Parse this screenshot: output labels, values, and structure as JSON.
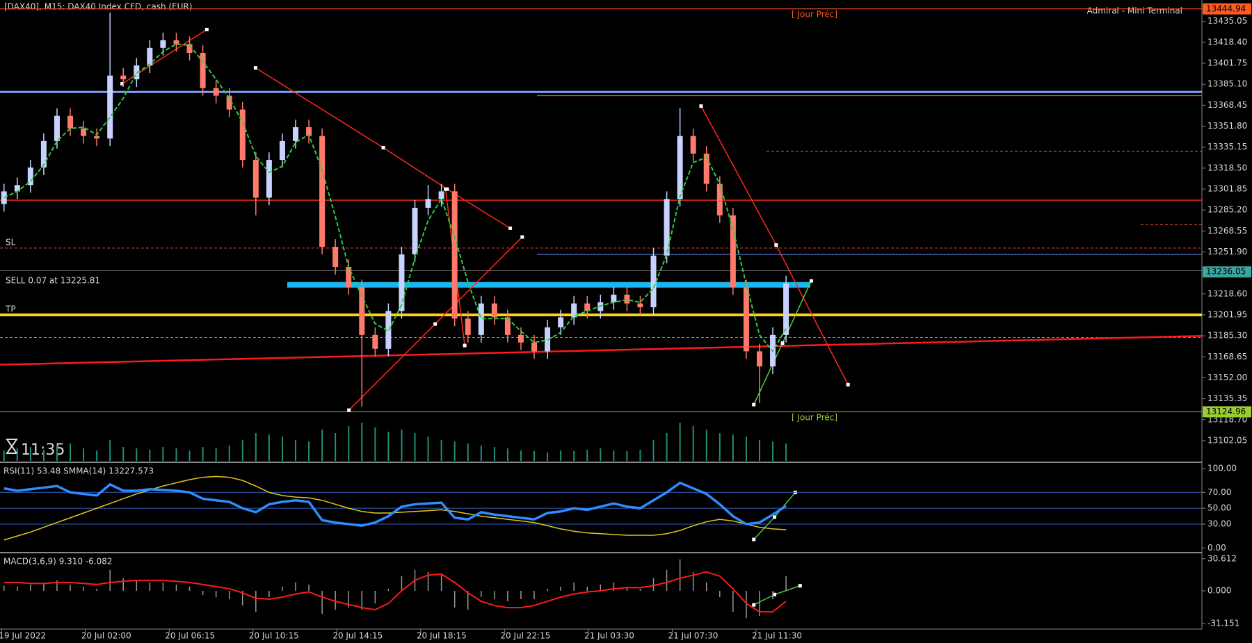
{
  "header": {
    "symbol": "[DAX40], M15:  DAX40 Index CFD, cash (EUR)",
    "terminal": "Admiral - Mini Terminal"
  },
  "main": {
    "ylim": [
      13086,
      13452
    ],
    "yticks": [
      13435.05,
      {
        "value": 13418.4,
        "label": "13418.40"
      },
      13401.75,
      {
        "value": 13385.1,
        "label": "13385.10"
      },
      13368.45,
      {
        "value": 13351.8,
        "label": "13351.80"
      },
      13335.15,
      {
        "value": 13318.5,
        "label": "13318.50"
      },
      13301.85,
      {
        "value": 13285.2,
        "label": "13285.20"
      },
      13268.55,
      {
        "value": 13251.9,
        "label": "13251.90"
      },
      {
        "value": 13218.6,
        "label": "13218.60"
      },
      13201.95,
      {
        "value": 13185.3,
        "label": "13185.30"
      },
      13168.65,
      {
        "value": 13152,
        "label": "13152.00"
      },
      13135.35,
      {
        "value": 13118.7,
        "label": "13118.70"
      },
      13102.05
    ],
    "price_boxes": [
      {
        "value": 13444.94,
        "color": "#ff5a1f"
      },
      {
        "value": 13236.05,
        "color": "#3aa6a0"
      },
      {
        "value": 13124.96,
        "color": "#9acd32"
      }
    ],
    "jour_prec": [
      "[ Jour Préc]",
      "[ Jour Préc]"
    ],
    "levels": [
      {
        "value": 13379,
        "color": "#7aa2ff",
        "width": 3,
        "dash": false
      },
      {
        "value": 13376,
        "color": "#ff5a1f",
        "width": 1,
        "dash": false
      },
      {
        "value": 13332,
        "color": "#ff5a1f",
        "width": 1,
        "dash": true
      },
      {
        "value": 13293,
        "color": "#ff2a1a",
        "width": 1.5,
        "dash": false
      },
      {
        "value": 13274,
        "color": "#ff5a1f",
        "width": 1,
        "dash": true
      },
      {
        "value": 13255,
        "color": "#ff3b30",
        "width": 1,
        "dash": true
      },
      {
        "value": 13250,
        "color": "#6f9cff",
        "width": 1,
        "dash": false
      },
      {
        "value": 13237,
        "color": "#777777",
        "width": 1,
        "dash": false
      },
      {
        "value": 13225.81,
        "color": "#19b6f0",
        "width": 8,
        "dash": false
      },
      {
        "value": 13201.95,
        "color": "#ffd21a",
        "width": 4,
        "dash": false
      },
      {
        "value": 13184,
        "color": "#a070c0",
        "width": 1,
        "dash": true
      },
      {
        "value": 13444.94,
        "color": "#ff5a1f",
        "width": 1,
        "dash": false
      },
      {
        "value": 13124.96,
        "color": "#9acd32",
        "width": 1,
        "dash": false
      }
    ],
    "labels": {
      "sl": "SL",
      "sell": "SELL 0.07 at 13225.81",
      "tp": "TP"
    },
    "timer": "11:35",
    "bull_color": "#c8d2ff",
    "bear_color": "#ff7a6a",
    "candles": {
      "open": [
        13290,
        13300,
        13305,
        13319,
        13340,
        13360,
        13350,
        13344,
        13342,
        13392,
        13389,
        13400,
        13414,
        13420,
        13417,
        13410,
        13382,
        13376,
        13365,
        13325,
        13295,
        13325,
        13340,
        13351,
        13344,
        13256,
        13240,
        13224,
        13186,
        13175,
        13205,
        13250,
        13287,
        13294,
        13300,
        13199,
        13186,
        13211,
        13200,
        13186,
        13180,
        13173,
        13192,
        13200,
        13211,
        13205,
        13212,
        13218,
        13211,
        13208,
        13249,
        13294,
        13344,
        13330,
        13306,
        13281,
        13224,
        13173,
        13161,
        13186
      ],
      "high": [
        13306,
        13311,
        13325,
        13346,
        13366,
        13366,
        13356,
        13350,
        13442,
        13398,
        13406,
        13420,
        13426,
        13426,
        13423,
        13416,
        13388,
        13382,
        13371,
        13331,
        13331,
        13346,
        13357,
        13357,
        13350,
        13262,
        13246,
        13230,
        13192,
        13211,
        13256,
        13293,
        13305,
        13306,
        13306,
        13205,
        13217,
        13217,
        13206,
        13192,
        13186,
        13198,
        13206,
        13217,
        13217,
        13218,
        13224,
        13224,
        13217,
        13255,
        13300,
        13366,
        13350,
        13336,
        13312,
        13287,
        13230,
        13179,
        13192,
        13233
      ],
      "low": [
        13284,
        13294,
        13299,
        13313,
        13334,
        13344,
        13338,
        13336,
        13336,
        13383,
        13383,
        13394,
        13408,
        13411,
        13404,
        13376,
        13370,
        13359,
        13319,
        13281,
        13289,
        13319,
        13334,
        13338,
        13250,
        13234,
        13218,
        13129,
        13169,
        13169,
        13199,
        13244,
        13281,
        13288,
        13193,
        13180,
        13180,
        13194,
        13180,
        13174,
        13167,
        13167,
        13186,
        13194,
        13199,
        13199,
        13206,
        13205,
        13202,
        13202,
        13243,
        13288,
        13324,
        13300,
        13275,
        13218,
        13167,
        13132,
        13155,
        13180
      ],
      "close": [
        13300,
        13305,
        13319,
        13340,
        13360,
        13350,
        13344,
        13342,
        13392,
        13389,
        13400,
        13414,
        13420,
        13417,
        13410,
        13382,
        13376,
        13365,
        13325,
        13295,
        13325,
        13340,
        13351,
        13344,
        13256,
        13240,
        13224,
        13186,
        13175,
        13205,
        13250,
        13287,
        13294,
        13300,
        13199,
        13186,
        13211,
        13200,
        13186,
        13180,
        13173,
        13192,
        13200,
        13211,
        13205,
        13212,
        13218,
        13211,
        13208,
        13249,
        13294,
        13344,
        13330,
        13306,
        13281,
        13224,
        13173,
        13161,
        13186,
        13227
      ]
    },
    "ma": {
      "color": "#2ecc40",
      "values": [
        13295,
        13300,
        13308,
        13321,
        13340,
        13350,
        13351,
        13345,
        13359,
        13374,
        13394,
        13401,
        13411,
        13417,
        13416,
        13403,
        13389,
        13374,
        13355,
        13328,
        13315,
        13320,
        13339,
        13345,
        13317,
        13280,
        13240,
        13217,
        13195,
        13189,
        13210,
        13247,
        13277,
        13294,
        13264,
        13228,
        13199,
        13199,
        13199,
        13189,
        13180,
        13182,
        13188,
        13201,
        13205,
        13209,
        13212,
        13214,
        13212,
        13223,
        13250,
        13296,
        13323,
        13327,
        13306,
        13270,
        13226,
        13186,
        13173,
        13191
      ]
    },
    "volume": {
      "color": "#1f8f7a",
      "vlim": [
        0,
        60
      ],
      "values": [
        15,
        18,
        20,
        16,
        22,
        25,
        18,
        15,
        30,
        20,
        18,
        16,
        20,
        18,
        15,
        20,
        18,
        22,
        30,
        40,
        38,
        35,
        30,
        28,
        45,
        40,
        50,
        55,
        48,
        42,
        45,
        40,
        35,
        30,
        28,
        25,
        22,
        20,
        18,
        15,
        14,
        12,
        15,
        14,
        16,
        18,
        15,
        14,
        16,
        30,
        40,
        55,
        50,
        45,
        40,
        38,
        35,
        30,
        28,
        25
      ]
    }
  },
  "rsi": {
    "label": "RSI(11) 53.48 SMMA(14) 13227.573",
    "ylim": [
      -5,
      107
    ],
    "yticks": [
      {
        "value": 100,
        "label": "100.00"
      },
      {
        "value": 70,
        "label": "70.00"
      },
      {
        "value": 50,
        "label": "50.00"
      },
      {
        "value": 30,
        "label": "30.00"
      },
      {
        "value": 0,
        "label": "0.00"
      }
    ],
    "rsi": {
      "color": "#2f8cff",
      "values": [
        75,
        72,
        74,
        76,
        78,
        70,
        68,
        66,
        80,
        72,
        72,
        74,
        73,
        72,
        70,
        62,
        60,
        58,
        50,
        45,
        55,
        58,
        60,
        58,
        35,
        32,
        30,
        28,
        32,
        40,
        52,
        55,
        56,
        57,
        38,
        36,
        45,
        42,
        40,
        38,
        36,
        44,
        46,
        50,
        48,
        52,
        56,
        52,
        50,
        60,
        70,
        82,
        75,
        68,
        55,
        40,
        30,
        32,
        42,
        53
      ]
    },
    "smma": {
      "color": "#e6c619",
      "values": [
        10,
        15,
        20,
        26,
        32,
        38,
        44,
        50,
        56,
        62,
        68,
        73,
        78,
        82,
        86,
        89,
        90,
        89,
        85,
        78,
        70,
        66,
        64,
        63,
        60,
        55,
        50,
        46,
        44,
        44,
        45,
        46,
        47,
        48,
        46,
        43,
        40,
        38,
        36,
        34,
        32,
        28,
        24,
        21,
        19,
        18,
        17,
        16,
        16,
        16,
        18,
        22,
        28,
        33,
        36,
        34,
        30,
        26,
        24,
        23
      ]
    }
  },
  "macd": {
    "label": "MACD(3,6,9) 9.310 -6.082",
    "ylim": [
      -36.5,
      35.1
    ],
    "yticks": [
      30.612,
      {
        "value": 0,
        "label": "0.000"
      },
      -31.151
    ],
    "hist": {
      "color": "#9a9a9a",
      "values": [
        5,
        4,
        6,
        8,
        10,
        6,
        4,
        2,
        20,
        12,
        10,
        8,
        8,
        6,
        4,
        -4,
        -6,
        -8,
        -14,
        -20,
        -6,
        4,
        8,
        6,
        -22,
        -18,
        -16,
        -18,
        -12,
        2,
        14,
        20,
        18,
        16,
        -16,
        -18,
        -6,
        -8,
        -10,
        -8,
        -8,
        2,
        4,
        8,
        4,
        6,
        8,
        4,
        2,
        12,
        20,
        30,
        18,
        8,
        -6,
        -20,
        -26,
        -24,
        -8,
        14
      ]
    },
    "signal": {
      "color": "#ff1a1a",
      "values": [
        8,
        8,
        7,
        7,
        8,
        8,
        7,
        6,
        8,
        9,
        10,
        10,
        10,
        9,
        8,
        6,
        4,
        2,
        -2,
        -7,
        -8,
        -6,
        -3,
        -1,
        -6,
        -10,
        -13,
        -16,
        -18,
        -12,
        0,
        10,
        15,
        16,
        8,
        -2,
        -10,
        -14,
        -16,
        -16,
        -14,
        -10,
        -6,
        -3,
        -1,
        0,
        2,
        3,
        3,
        5,
        8,
        12,
        15,
        18,
        14,
        2,
        -12,
        -20,
        -20,
        -10
      ]
    }
  },
  "time_labels": [
    "19 Jul 2022",
    "20 Jul 02:00",
    "20 Jul 06:15",
    "20 Jul 10:15",
    "20 Jul 14:15",
    "20 Jul 18:15",
    "20 Jul 22:15",
    "21 Jul 03:30",
    "21 Jul 07:30",
    "21 Jul 11:30"
  ]
}
